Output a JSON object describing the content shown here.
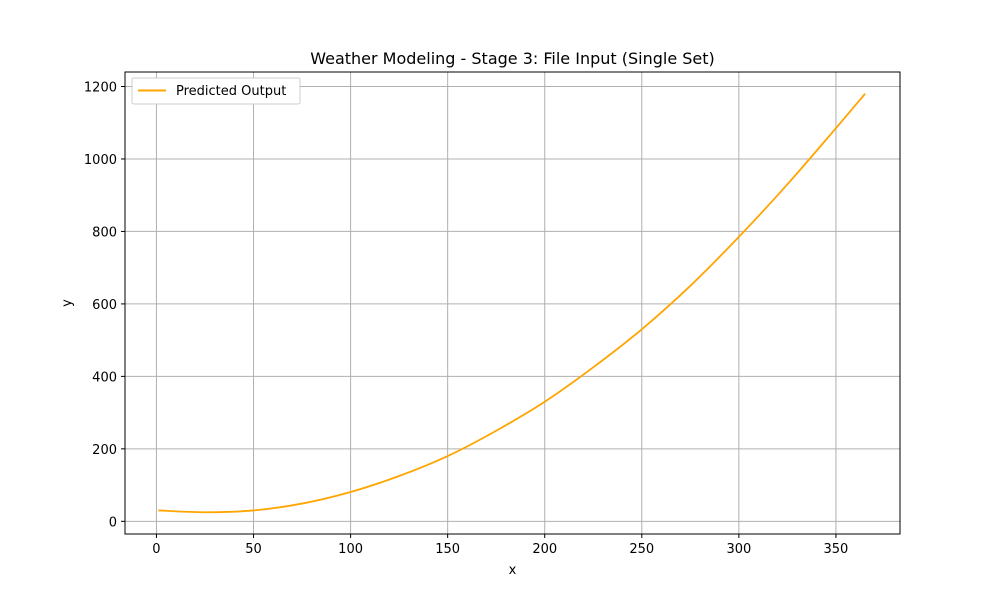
{
  "chart_data": {
    "type": "line",
    "title": "Weather Modeling - Stage 3: File Input (Single Set)",
    "xlabel": "x",
    "ylabel": "y",
    "xlim": [
      -16.2,
      383
    ],
    "ylim": [
      -35,
      1240
    ],
    "xticks": [
      0,
      50,
      100,
      150,
      200,
      250,
      300,
      350
    ],
    "yticks": [
      0,
      200,
      400,
      600,
      800,
      1000,
      1200
    ],
    "grid": true,
    "legend_position": "top-left",
    "series": [
      {
        "name": "Predicted Output",
        "color": "#ffa500",
        "x": [
          1,
          25,
          50,
          75,
          100,
          125,
          150,
          175,
          200,
          225,
          250,
          275,
          300,
          325,
          350,
          365
        ],
        "y": [
          30,
          25,
          30,
          49,
          81,
          125,
          180,
          250,
          330,
          425,
          530,
          650,
          785,
          930,
          1085,
          1180
        ]
      }
    ]
  }
}
